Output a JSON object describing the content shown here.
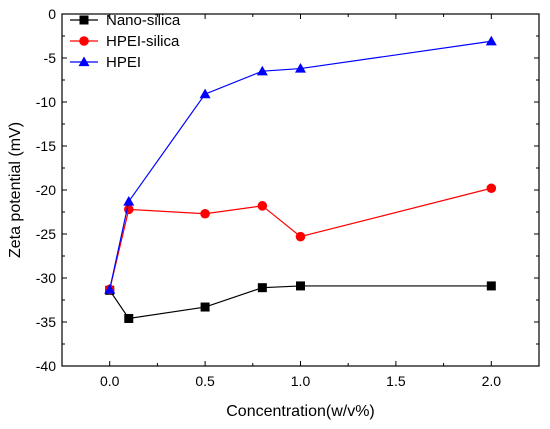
{
  "chart_data": {
    "type": "line",
    "title": "",
    "xlabel": "Concentration(w/v%)",
    "ylabel": "Zeta potential (mV)",
    "xlim": [
      -0.25,
      2.25
    ],
    "ylim": [
      -40,
      0
    ],
    "xticks": [
      0.0,
      0.5,
      1.0,
      1.5,
      2.0
    ],
    "xtick_labels": [
      "0.0",
      "0.5",
      "1.0",
      "1.5",
      "2.0"
    ],
    "yticks": [
      0,
      -5,
      -10,
      -15,
      -20,
      -25,
      -30,
      -35,
      -40
    ],
    "ytick_labels": [
      "0",
      "-5",
      "-10",
      "-15",
      "-20",
      "-25",
      "-30",
      "-35",
      "-40"
    ],
    "grid": false,
    "legend_position": "top-left",
    "series": [
      {
        "name": "Nano-silica",
        "color": "#000000",
        "marker": "square",
        "x": [
          0,
          0.1,
          0.5,
          0.8,
          1.0,
          2.0
        ],
        "y": [
          -31.4,
          -34.6,
          -33.3,
          -31.1,
          -30.9,
          -30.9
        ]
      },
      {
        "name": "HPEI-silica",
        "color": "#ff0000",
        "marker": "circle",
        "x": [
          0,
          0.1,
          0.5,
          0.8,
          1.0,
          2.0
        ],
        "y": [
          -31.3,
          -22.2,
          -22.7,
          -21.8,
          -25.3,
          -19.8
        ]
      },
      {
        "name": "HPEI",
        "color": "#0000ff",
        "marker": "triangle",
        "x": [
          0,
          0.1,
          0.5,
          0.8,
          1.0,
          2.0
        ],
        "y": [
          -31.3,
          -21.3,
          -9.1,
          -6.5,
          -6.2,
          -3.1
        ]
      }
    ]
  }
}
